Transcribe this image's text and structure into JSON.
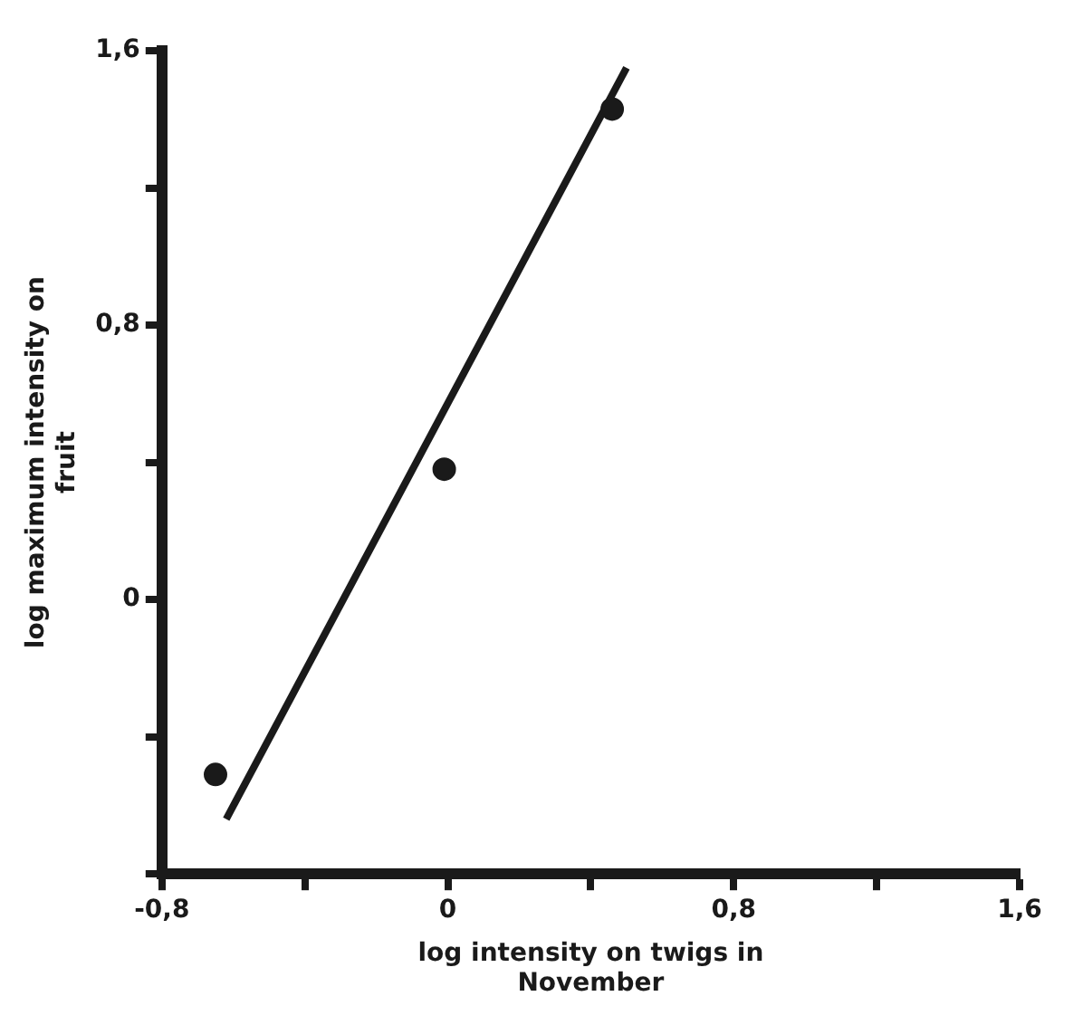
{
  "chart_data": {
    "type": "scatter",
    "xlabel": "log intensity on twigs in November",
    "ylabel": "log maximum intensity on fruit",
    "xlim": [
      -0.8,
      1.6
    ],
    "ylim": [
      -0.8,
      1.6
    ],
    "xticks": [
      {
        "value": -0.8,
        "label": "-0,8"
      },
      {
        "value": -0.4,
        "label": null
      },
      {
        "value": 0,
        "label": "0"
      },
      {
        "value": 0.4,
        "label": null
      },
      {
        "value": 0.8,
        "label": "0,8"
      },
      {
        "value": 1.2,
        "label": null
      },
      {
        "value": 1.6,
        "label": "1,6"
      }
    ],
    "yticks": [
      {
        "value": -0.8,
        "label": null
      },
      {
        "value": -0.4,
        "label": null
      },
      {
        "value": 0,
        "label": "0"
      },
      {
        "value": 0.4,
        "label": null
      },
      {
        "value": 0.8,
        "label": "0,8"
      },
      {
        "value": 1.2,
        "label": null
      },
      {
        "value": 1.6,
        "label": "1,6"
      }
    ],
    "grid": false,
    "legend": false,
    "marker": "circle",
    "series": [
      {
        "color": "#1a1a1a",
        "x": [
          -0.65,
          -0.01,
          0.46
        ],
        "values": [
          -0.51,
          0.38,
          1.43
        ]
      },
      {
        "type": "line",
        "color": "#1a1a1a",
        "x": [
          -0.62,
          0.5
        ],
        "values": [
          -0.64,
          1.55
        ],
        "line_style": "solid",
        "marker": "none"
      }
    ]
  }
}
